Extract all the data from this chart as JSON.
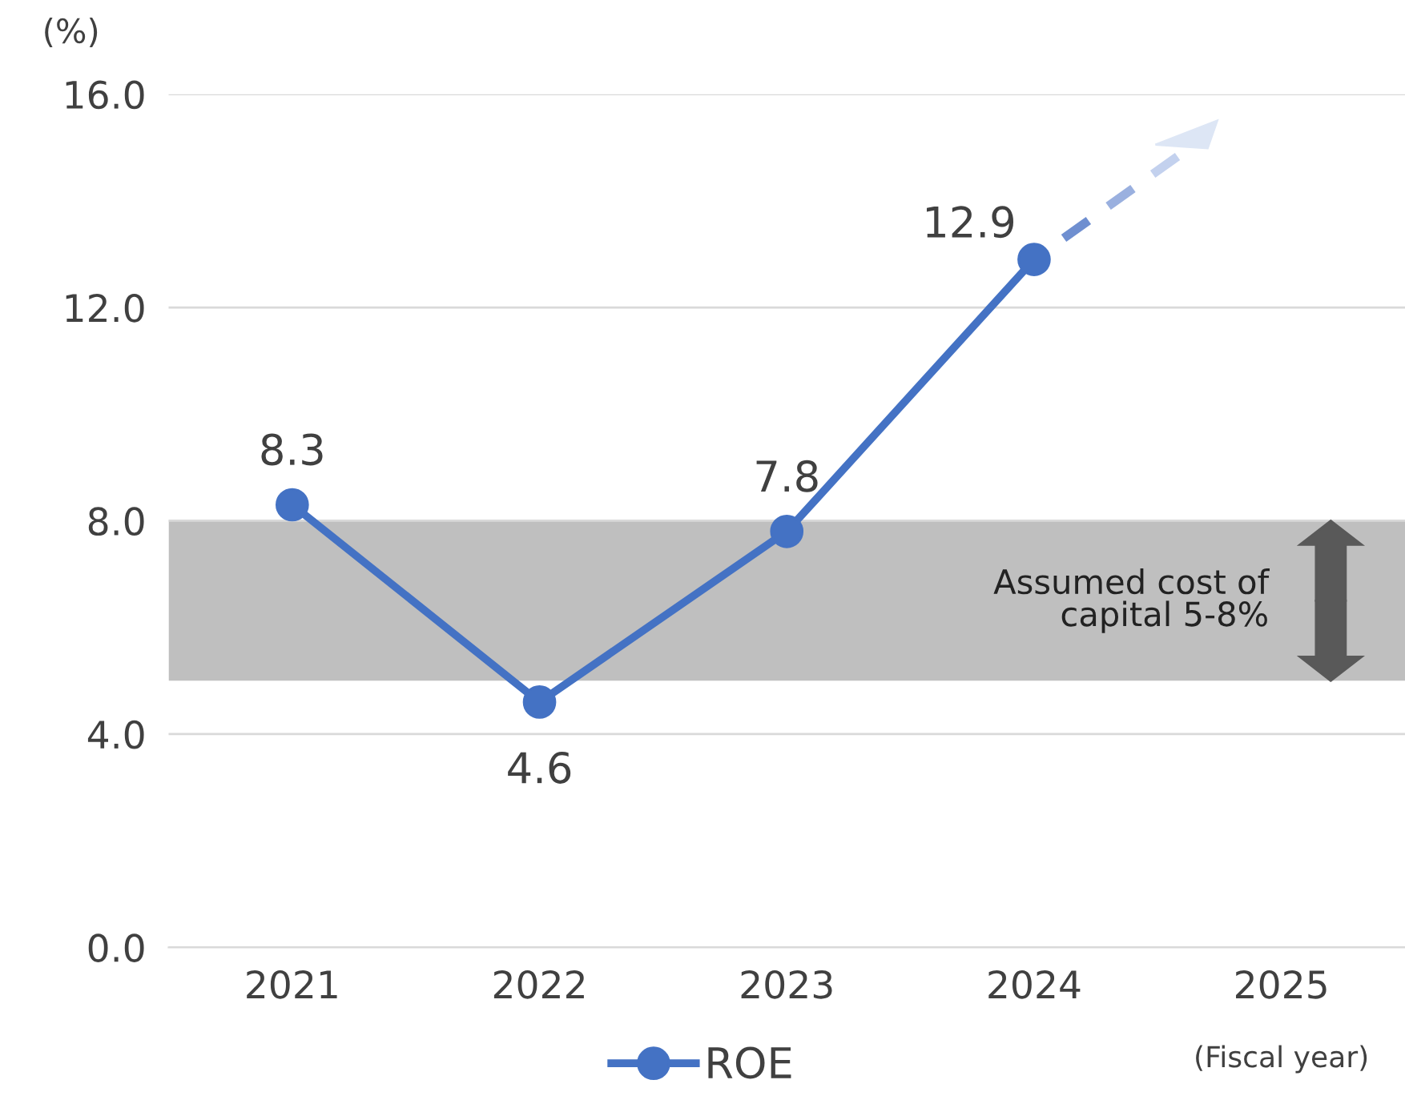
{
  "chart_data": {
    "type": "line",
    "ylabel": "(%)",
    "xlabel": "(Fiscal year)",
    "categories": [
      "2021",
      "2022",
      "2023",
      "2024",
      "2025"
    ],
    "series": [
      {
        "name": "ROE",
        "color": "#4472c4",
        "values": [
          8.3,
          4.6,
          7.8,
          12.9,
          null
        ]
      }
    ],
    "ylim": [
      0,
      16
    ],
    "yticks": [
      {
        "value": 0,
        "label": "0.0"
      },
      {
        "value": 4,
        "label": "4.0"
      },
      {
        "value": 8,
        "label": "8.0"
      },
      {
        "value": 12,
        "label": "12.0"
      },
      {
        "value": 16,
        "label": "16.0"
      }
    ],
    "bands": [
      {
        "axis": "y",
        "from": 5,
        "to": 8,
        "label": "Assumed cost of\ncapital 5-8%",
        "color": "#bfbfbf"
      }
    ],
    "grid": "y",
    "legend": "bottom",
    "marker": "circle",
    "line_style": "solid",
    "data_labels": true
  }
}
